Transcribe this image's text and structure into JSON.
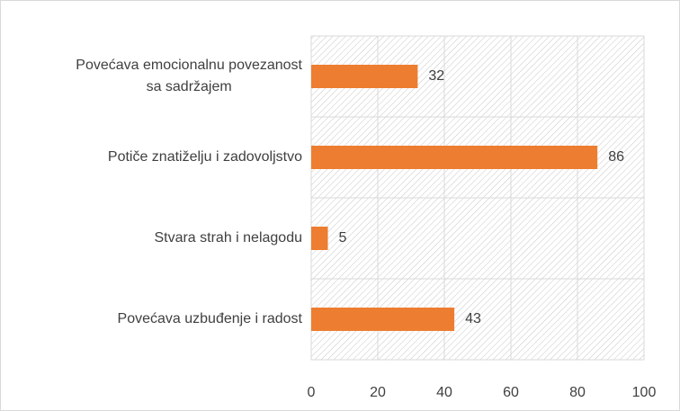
{
  "chart_data": {
    "type": "bar",
    "orientation": "horizontal",
    "categories": [
      "Povećava emocionalnu povezanost sa sadržajem",
      "Potiče znatiželju i zadovoljstvo",
      "Stvara strah i nelagodu",
      "Povećava uzbuđenje i radost"
    ],
    "values": [
      32,
      86,
      5,
      43
    ],
    "color": "#ed7d31",
    "xlim": [
      0,
      100
    ],
    "xticks": [
      0,
      20,
      40,
      60,
      80,
      100
    ],
    "grid": true
  }
}
